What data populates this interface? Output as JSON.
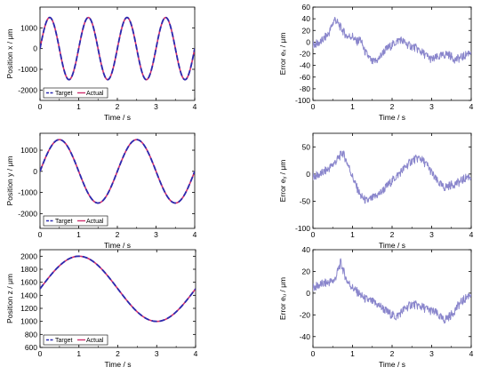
{
  "figure": {
    "colors": {
      "target": "#2a2ab0",
      "actual": "#d0306e",
      "error": "#8a86cc",
      "axis": "#000000"
    }
  },
  "chart_data": [
    {
      "id": "pos-x",
      "type": "line",
      "xlabel": "Time / s",
      "ylabel": "Position x / μm",
      "xlim": [
        0,
        4
      ],
      "ylim": [
        -2500,
        2000
      ],
      "xticks": [
        0,
        1,
        2,
        3,
        4
      ],
      "yticks": [
        -2000,
        -1000,
        0,
        1000
      ],
      "legend": "bottom-left",
      "series": [
        {
          "name": "Target",
          "style": "dashed",
          "color": "#2a2ab0",
          "function": {
            "kind": "sine",
            "amplitude": 1500,
            "frequency_hz": 1,
            "offset": 0,
            "phase_cycles": 0
          }
        },
        {
          "name": "Actual",
          "style": "solid",
          "color": "#d0306e",
          "function": {
            "kind": "sine",
            "amplitude": 1500,
            "frequency_hz": 1,
            "offset": 0,
            "phase_cycles": 0
          }
        }
      ]
    },
    {
      "id": "err-x",
      "type": "line",
      "xlabel": "Time / s",
      "ylabel": "Error eₓ / μm",
      "xlim": [
        0,
        4
      ],
      "ylim": [
        -100,
        60
      ],
      "xticks": [
        0,
        1,
        2,
        3,
        4
      ],
      "yticks": [
        -100,
        -80,
        -60,
        -40,
        -20,
        0,
        20,
        40,
        60
      ],
      "series": [
        {
          "style": "solid",
          "color": "#8a86cc",
          "x": [
            0,
            0.2,
            0.4,
            0.55,
            0.7,
            0.85,
            1.0,
            1.1,
            1.2,
            1.3,
            1.4,
            1.5,
            1.65,
            1.8,
            2.0,
            2.2,
            2.4,
            2.6,
            2.8,
            3.0,
            3.2,
            3.4,
            3.6,
            3.8,
            4.0
          ],
          "y": [
            -5,
            0,
            15,
            40,
            25,
            10,
            10,
            0,
            5,
            -15,
            -25,
            -35,
            -30,
            -15,
            -5,
            5,
            -5,
            -10,
            -20,
            -30,
            -25,
            -20,
            -30,
            -25,
            -15
          ]
        }
      ]
    },
    {
      "id": "pos-y",
      "type": "line",
      "xlabel": "Time / s",
      "ylabel": "Position y / μm",
      "xlim": [
        0,
        4
      ],
      "ylim": [
        -2700,
        1800
      ],
      "xticks": [
        0,
        1,
        2,
        3,
        4
      ],
      "yticks": [
        -2000,
        -1000,
        0,
        1000
      ],
      "legend": "bottom-left",
      "series": [
        {
          "name": "Target",
          "style": "dashed",
          "color": "#2a2ab0",
          "function": {
            "kind": "sine",
            "amplitude": 1500,
            "frequency_hz": 0.5,
            "offset": 0,
            "phase_cycles": 0
          }
        },
        {
          "name": "Actual",
          "style": "solid",
          "color": "#d0306e",
          "function": {
            "kind": "sine",
            "amplitude": 1500,
            "frequency_hz": 0.5,
            "offset": 0,
            "phase_cycles": 0
          }
        }
      ]
    },
    {
      "id": "err-y",
      "type": "line",
      "xlabel": "Time / s",
      "ylabel": "Error eᵧ / μm",
      "xlim": [
        0,
        4
      ],
      "ylim": [
        -100,
        75
      ],
      "xticks": [
        0,
        1,
        2,
        3,
        4
      ],
      "yticks": [
        -100,
        -50,
        0,
        50
      ],
      "series": [
        {
          "style": "solid",
          "color": "#8a86cc",
          "x": [
            0,
            0.2,
            0.4,
            0.6,
            0.75,
            0.9,
            1.05,
            1.2,
            1.35,
            1.5,
            1.7,
            1.9,
            2.1,
            2.3,
            2.5,
            2.7,
            2.9,
            3.1,
            3.3,
            3.5,
            3.7,
            3.9,
            4.0
          ],
          "y": [
            -5,
            0,
            10,
            25,
            40,
            15,
            -15,
            -40,
            -50,
            -45,
            -35,
            -20,
            -5,
            10,
            25,
            30,
            15,
            -10,
            -25,
            -20,
            -15,
            -5,
            -5
          ]
        }
      ]
    },
    {
      "id": "pos-z",
      "type": "line",
      "xlabel": "Time / s",
      "ylabel": "Position z / μm",
      "xlim": [
        0,
        4
      ],
      "ylim": [
        600,
        2100
      ],
      "xticks": [
        0,
        1,
        2,
        3,
        4
      ],
      "yticks": [
        600,
        800,
        1000,
        1200,
        1400,
        1600,
        1800,
        2000
      ],
      "legend": "bottom-left",
      "series": [
        {
          "name": "Target",
          "style": "dashed",
          "color": "#2a2ab0",
          "function": {
            "kind": "sine",
            "amplitude": 500,
            "frequency_hz": 0.25,
            "offset": 1500,
            "phase_cycles": 0
          }
        },
        {
          "name": "Actual",
          "style": "solid",
          "color": "#d0306e",
          "function": {
            "kind": "sine",
            "amplitude": 500,
            "frequency_hz": 0.25,
            "offset": 1500,
            "phase_cycles": 0
          }
        }
      ]
    },
    {
      "id": "err-z",
      "type": "line",
      "xlabel": "Time / s",
      "ylabel": "Error eᵤ / μm",
      "xlim": [
        0,
        4
      ],
      "ylim": [
        -50,
        40
      ],
      "xticks": [
        0,
        1,
        2,
        3,
        4
      ],
      "yticks": [
        -40,
        -20,
        0,
        20,
        40
      ],
      "series": [
        {
          "style": "solid",
          "color": "#8a86cc",
          "x": [
            0,
            0.2,
            0.4,
            0.55,
            0.7,
            0.85,
            1.0,
            1.15,
            1.3,
            1.5,
            1.7,
            1.9,
            2.1,
            2.3,
            2.5,
            2.7,
            2.9,
            3.1,
            3.3,
            3.5,
            3.7,
            3.85,
            4.0
          ],
          "y": [
            5,
            8,
            10,
            12,
            28,
            12,
            5,
            0,
            -5,
            -8,
            -12,
            -18,
            -22,
            -15,
            -10,
            -12,
            -15,
            -18,
            -25,
            -20,
            -10,
            -5,
            0
          ]
        }
      ]
    }
  ]
}
